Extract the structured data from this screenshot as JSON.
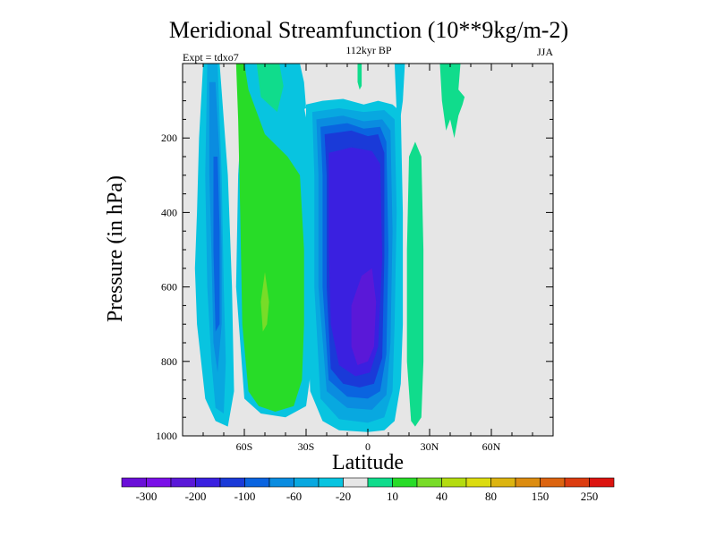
{
  "chart_data": {
    "type": "heatmap",
    "title": "Meridional Streamfunction (10**9kg/m-2)",
    "subtitle_center": "112kyr BP",
    "subtitle_left": "Expt = tdxo7",
    "subtitle_right": "JJA",
    "xlabel": "Latitude",
    "ylabel": "Pressure (in hPa)",
    "xlim": [
      -90,
      90
    ],
    "ylim": [
      1000,
      0
    ],
    "x_ticks": [
      {
        "value": -60,
        "label": "60S"
      },
      {
        "value": -30,
        "label": "30S"
      },
      {
        "value": 0,
        "label": "0"
      },
      {
        "value": 30,
        "label": "30N"
      },
      {
        "value": 60,
        "label": "60N"
      }
    ],
    "y_ticks": [
      {
        "value": 200,
        "label": "200"
      },
      {
        "value": 400,
        "label": "400"
      },
      {
        "value": 600,
        "label": "600"
      },
      {
        "value": 800,
        "label": "800"
      },
      {
        "value": 1000,
        "label": "1000"
      }
    ],
    "colorbar": {
      "colors": [
        "#6a0fd8",
        "#7a10e8",
        "#5a18d8",
        "#3a20e0",
        "#1a3ad8",
        "#0a64e0",
        "#0a8ce0",
        "#08a8e0",
        "#08c4e0",
        "#e6e6e6",
        "#10dc8c",
        "#28dc28",
        "#78dc28",
        "#b4dc10",
        "#dcdc10",
        "#dcb410",
        "#dc8c10",
        "#dc6410",
        "#dc3c10",
        "#dc1410"
      ],
      "labels": [
        {
          "boundary": 1,
          "text": "-300"
        },
        {
          "boundary": 3,
          "text": "-200"
        },
        {
          "boundary": 5,
          "text": "-100"
        },
        {
          "boundary": 7,
          "text": "-60"
        },
        {
          "boundary": 9,
          "text": "-20"
        },
        {
          "boundary": 11,
          "text": "10"
        },
        {
          "boundary": 13,
          "text": "40"
        },
        {
          "boundary": 15,
          "text": "80"
        },
        {
          "boundary": 17,
          "text": "150"
        },
        {
          "boundary": 19,
          "text": "250"
        }
      ]
    },
    "background_color": "#e6e6e6",
    "regions": [
      {
        "color": "#08c4e0",
        "points": [
          [
            -80,
            0
          ],
          [
            -72,
            0
          ],
          [
            -68,
            300
          ],
          [
            -66,
            600
          ],
          [
            -65,
            880
          ],
          [
            -68,
            975
          ],
          [
            -74,
            960
          ],
          [
            -79,
            900
          ],
          [
            -83,
            700
          ],
          [
            -84,
            550
          ],
          [
            -83,
            400
          ],
          [
            -82,
            200
          ]
        ]
      },
      {
        "color": "#08a8e0",
        "points": [
          [
            -78,
            0
          ],
          [
            -73,
            0
          ],
          [
            -71,
            300
          ],
          [
            -70,
            600
          ],
          [
            -69,
            800
          ],
          [
            -70,
            940
          ],
          [
            -74,
            925
          ],
          [
            -76,
            800
          ],
          [
            -78,
            600
          ],
          [
            -79,
            300
          ]
        ]
      },
      {
        "color": "#0a8ce0",
        "points": [
          [
            -77,
            50
          ],
          [
            -74,
            50
          ],
          [
            -72,
            250
          ],
          [
            -71,
            500
          ],
          [
            -71,
            700
          ],
          [
            -73,
            830
          ],
          [
            -75,
            750
          ],
          [
            -76,
            500
          ],
          [
            -77,
            300
          ]
        ]
      },
      {
        "color": "#0a64e0",
        "points": [
          [
            -75,
            250
          ],
          [
            -73,
            250
          ],
          [
            -72,
            450
          ],
          [
            -72,
            700
          ],
          [
            -74,
            720
          ],
          [
            -75,
            500
          ]
        ]
      },
      {
        "color": "#08c4e0",
        "points": [
          [
            -55,
            0
          ],
          [
            -38,
            0
          ],
          [
            -32,
            90
          ],
          [
            -28,
            200
          ],
          [
            -27,
            500
          ],
          [
            -27,
            800
          ],
          [
            -30,
            920
          ],
          [
            -40,
            950
          ],
          [
            -52,
            940
          ],
          [
            -60,
            900
          ],
          [
            -64,
            600
          ],
          [
            -63,
            300
          ],
          [
            -60,
            0
          ]
        ]
      },
      {
        "color": "#28dc28",
        "points": [
          [
            -64,
            0
          ],
          [
            -60,
            0
          ],
          [
            -58,
            70
          ],
          [
            -50,
            190
          ],
          [
            -39,
            250
          ],
          [
            -33,
            300
          ],
          [
            -31,
            500
          ],
          [
            -31,
            700
          ],
          [
            -32,
            850
          ],
          [
            -36,
            920
          ],
          [
            -45,
            935
          ],
          [
            -53,
            920
          ],
          [
            -58,
            880
          ],
          [
            -61,
            700
          ],
          [
            -62,
            400
          ],
          [
            -63,
            150
          ]
        ]
      },
      {
        "color": "#10dc8c",
        "points": [
          [
            -54,
            0
          ],
          [
            -43,
            0
          ],
          [
            -41,
            60
          ],
          [
            -44,
            130
          ],
          [
            -52,
            90
          ]
        ]
      },
      {
        "color": "#78dc28",
        "points": [
          [
            -52,
            640
          ],
          [
            -50,
            560
          ],
          [
            -48,
            640
          ],
          [
            -49,
            700
          ],
          [
            -51,
            720
          ]
        ]
      },
      {
        "color": "#08c4e0",
        "points": [
          [
            -40,
            0
          ],
          [
            -33,
            0
          ],
          [
            -31,
            50
          ],
          [
            -30,
            120
          ],
          [
            -34,
            130
          ],
          [
            -38,
            90
          ]
        ]
      },
      {
        "color": "#08c4e0",
        "points": [
          [
            -30,
            110
          ],
          [
            -22,
            100
          ],
          [
            -12,
            95
          ],
          [
            -2,
            110
          ],
          [
            5,
            100
          ],
          [
            12,
            110
          ],
          [
            16,
            130
          ],
          [
            17,
            400
          ],
          [
            17,
            700
          ],
          [
            16,
            860
          ],
          [
            13,
            960
          ],
          [
            8,
            985
          ],
          [
            0,
            990
          ],
          [
            -14,
            985
          ],
          [
            -22,
            960
          ],
          [
            -28,
            880
          ],
          [
            -30,
            600
          ],
          [
            -30,
            300
          ]
        ]
      },
      {
        "color": "#08a8e0",
        "points": [
          [
            -27,
            130
          ],
          [
            -14,
            120
          ],
          [
            -2,
            130
          ],
          [
            8,
            125
          ],
          [
            13,
            150
          ],
          [
            14,
            400
          ],
          [
            13,
            700
          ],
          [
            12,
            880
          ],
          [
            8,
            950
          ],
          [
            0,
            965
          ],
          [
            -14,
            955
          ],
          [
            -23,
            900
          ],
          [
            -26,
            600
          ],
          [
            -26,
            300
          ]
        ]
      },
      {
        "color": "#0a8ce0",
        "points": [
          [
            -25,
            150
          ],
          [
            -12,
            140
          ],
          [
            -2,
            155
          ],
          [
            7,
            150
          ],
          [
            11,
            180
          ],
          [
            12,
            450
          ],
          [
            11,
            750
          ],
          [
            9,
            890
          ],
          [
            2,
            930
          ],
          [
            -10,
            925
          ],
          [
            -20,
            880
          ],
          [
            -24,
            600
          ],
          [
            -24,
            300
          ]
        ]
      },
      {
        "color": "#0a64e0",
        "points": [
          [
            -23,
            170
          ],
          [
            -10,
            160
          ],
          [
            -2,
            175
          ],
          [
            6,
            170
          ],
          [
            9,
            210
          ],
          [
            10,
            500
          ],
          [
            9,
            780
          ],
          [
            6,
            880
          ],
          [
            0,
            900
          ],
          [
            -10,
            895
          ],
          [
            -19,
            850
          ],
          [
            -22,
            600
          ],
          [
            -22,
            300
          ]
        ]
      },
      {
        "color": "#1a3ad8",
        "points": [
          [
            -21,
            190
          ],
          [
            -8,
            180
          ],
          [
            0,
            195
          ],
          [
            5,
            190
          ],
          [
            8,
            240
          ],
          [
            8,
            520
          ],
          [
            7,
            790
          ],
          [
            3,
            860
          ],
          [
            -4,
            870
          ],
          [
            -12,
            860
          ],
          [
            -18,
            820
          ],
          [
            -20,
            600
          ],
          [
            -20,
            300
          ]
        ]
      },
      {
        "color": "#3a20e0",
        "points": [
          [
            -19,
            240
          ],
          [
            -8,
            225
          ],
          [
            2,
            235
          ],
          [
            6,
            270
          ],
          [
            7,
            520
          ],
          [
            5,
            760
          ],
          [
            1,
            830
          ],
          [
            -6,
            840
          ],
          [
            -14,
            810
          ],
          [
            -18,
            700
          ],
          [
            -19,
            500
          ]
        ]
      },
      {
        "color": "#5a18d8",
        "points": [
          [
            -8,
            650
          ],
          [
            -3,
            570
          ],
          [
            2,
            550
          ],
          [
            4,
            640
          ],
          [
            3,
            760
          ],
          [
            0,
            800
          ],
          [
            -5,
            810
          ],
          [
            -8,
            760
          ]
        ]
      },
      {
        "color": "#08c4e0",
        "points": [
          [
            13,
            0
          ],
          [
            18,
            0
          ],
          [
            17,
            100
          ],
          [
            16,
            140
          ],
          [
            14,
            130
          ]
        ]
      },
      {
        "color": "#10dc8c",
        "points": [
          [
            -5,
            0
          ],
          [
            -3,
            0
          ],
          [
            -3,
            60
          ],
          [
            -4,
            70
          ],
          [
            -5,
            50
          ]
        ]
      },
      {
        "color": "#10dc8c",
        "points": [
          [
            20,
            250
          ],
          [
            23,
            210
          ],
          [
            26,
            250
          ],
          [
            27,
            500
          ],
          [
            27,
            800
          ],
          [
            26,
            950
          ],
          [
            23,
            975
          ],
          [
            21,
            960
          ],
          [
            19,
            800
          ],
          [
            19,
            500
          ]
        ]
      },
      {
        "color": "#10dc8c",
        "points": [
          [
            35,
            0
          ],
          [
            45,
            0
          ],
          [
            44,
            70
          ],
          [
            47,
            90
          ],
          [
            46,
            110
          ],
          [
            44,
            140
          ],
          [
            42,
            200
          ],
          [
            40,
            150
          ],
          [
            38,
            180
          ],
          [
            36,
            100
          ]
        ]
      }
    ]
  }
}
